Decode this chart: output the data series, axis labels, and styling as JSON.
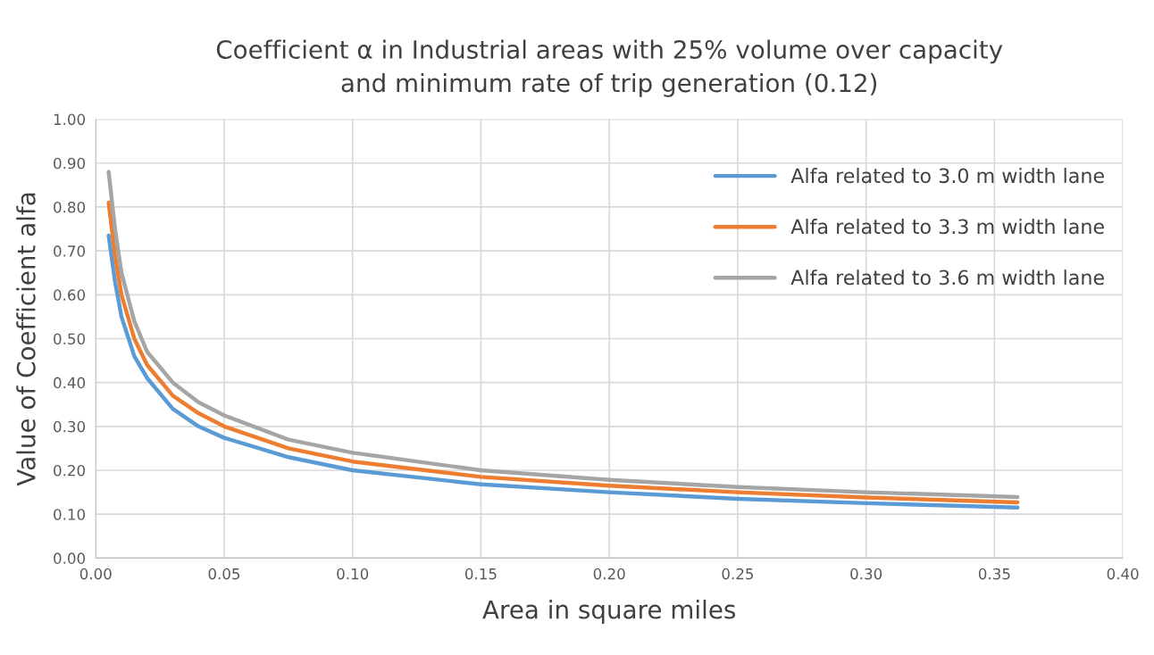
{
  "chart_data": {
    "type": "line",
    "title": "Coefficient α in Industrial areas with 25% volume over capacity\nand minimum rate of trip generation (0.12)",
    "xlabel": "Area in square miles",
    "ylabel": "Value of Coefficient alfa",
    "x": [
      0.005,
      0.0075,
      0.01,
      0.015,
      0.02,
      0.03,
      0.04,
      0.05,
      0.075,
      0.1,
      0.15,
      0.2,
      0.25,
      0.3,
      0.359
    ],
    "series": [
      {
        "name": "Alfa related to 3.0 m width lane",
        "color": "#5b9bd5",
        "values": [
          0.735,
          0.63,
          0.55,
          0.46,
          0.41,
          0.34,
          0.3,
          0.274,
          0.23,
          0.2,
          0.168,
          0.15,
          0.135,
          0.125,
          0.115
        ]
      },
      {
        "name": "Alfa related to 3.3 m width lane",
        "color": "#ed7d31",
        "values": [
          0.81,
          0.69,
          0.6,
          0.5,
          0.44,
          0.37,
          0.33,
          0.3,
          0.25,
          0.22,
          0.185,
          0.165,
          0.15,
          0.138,
          0.127
        ]
      },
      {
        "name": "Alfa related to 3.6 m width lane",
        "color": "#a5a5a5",
        "values": [
          0.88,
          0.75,
          0.65,
          0.54,
          0.47,
          0.4,
          0.355,
          0.325,
          0.27,
          0.24,
          0.2,
          0.178,
          0.162,
          0.15,
          0.139
        ]
      }
    ],
    "xlim": [
      0,
      0.4
    ],
    "xticks": [
      {
        "value": 0,
        "label": "0.00"
      },
      {
        "value": 0.05,
        "label": "0.05"
      },
      {
        "value": 0.1,
        "label": "0.10"
      },
      {
        "value": 0.15,
        "label": "0.15"
      },
      {
        "value": 0.2,
        "label": "0.20"
      },
      {
        "value": 0.25,
        "label": "0.25"
      },
      {
        "value": 0.3,
        "label": "0.30"
      },
      {
        "value": 0.35,
        "label": "0.35"
      },
      {
        "value": 0.4,
        "label": "0.40"
      }
    ],
    "ylim": [
      0,
      1
    ],
    "yticks": [
      {
        "value": 0,
        "label": "0.00"
      },
      {
        "value": 0.1,
        "label": "0.10"
      },
      {
        "value": 0.2,
        "label": "0.20"
      },
      {
        "value": 0.3,
        "label": "0.30"
      },
      {
        "value": 0.4,
        "label": "0.40"
      },
      {
        "value": 0.5,
        "label": "0.50"
      },
      {
        "value": 0.6,
        "label": "0.60"
      },
      {
        "value": 0.7,
        "label": "0.70"
      },
      {
        "value": 0.8,
        "label": "0.80"
      },
      {
        "value": 0.9,
        "label": "0.90"
      },
      {
        "value": 1,
        "label": "1.00"
      }
    ],
    "grid": true,
    "legend": "top right",
    "marker": "none",
    "line_style": "solid"
  }
}
